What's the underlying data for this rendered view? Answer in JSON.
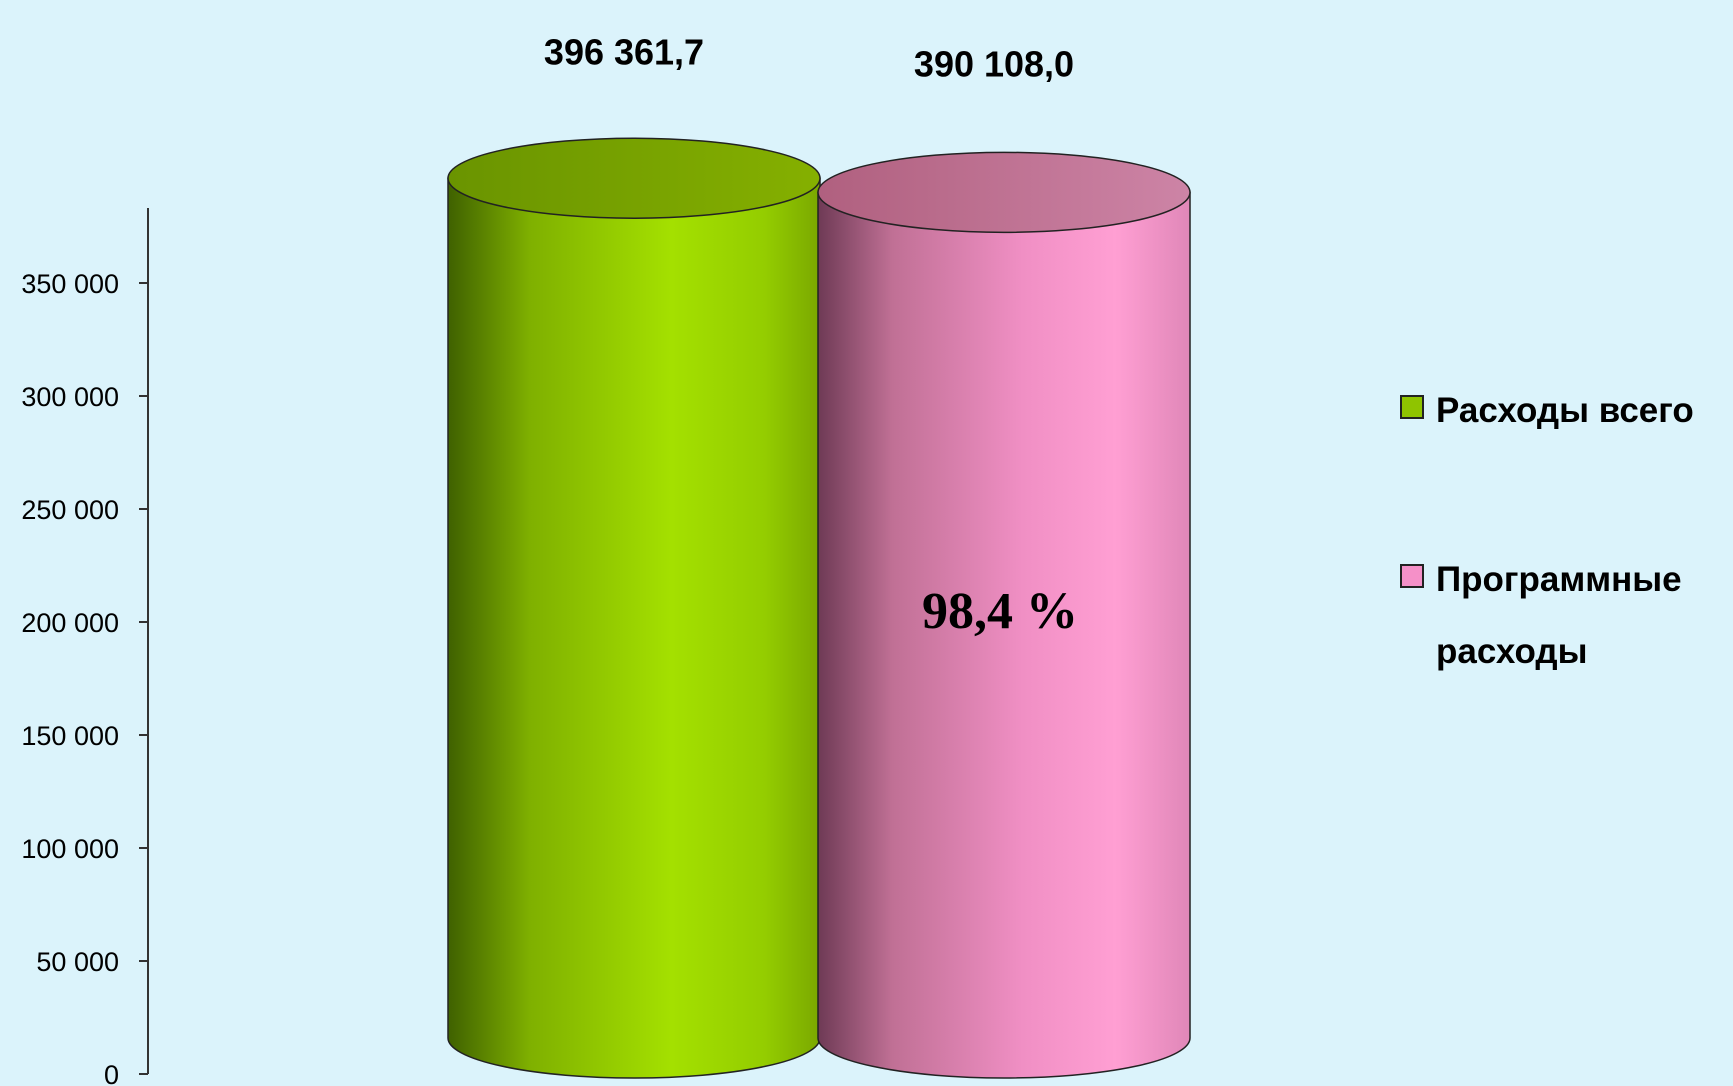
{
  "chart_data": {
    "type": "bar",
    "bar_shape": "cylinder",
    "categories": [
      "Расходы всего",
      "Программные расходы"
    ],
    "values": [
      396361.7,
      390108.0
    ],
    "data_labels": [
      "396 361,7",
      "390 108,0"
    ],
    "colors": [
      "#8fc400",
      "#f590c8"
    ],
    "y_ticks": [
      {
        "value": 0,
        "label": "0"
      },
      {
        "value": 50000,
        "label": "50 000"
      },
      {
        "value": 100000,
        "label": "100 000"
      },
      {
        "value": 150000,
        "label": "150 000"
      },
      {
        "value": 200000,
        "label": "200 000"
      },
      {
        "value": 250000,
        "label": "250 000"
      },
      {
        "value": 300000,
        "label": "300 000"
      },
      {
        "value": 350000,
        "label": "350 000"
      }
    ],
    "ylim": [
      0,
      380000
    ],
    "annotation": "98,4 %",
    "legend": {
      "placement": "right",
      "entries": [
        {
          "lines": [
            "Расходы всего"
          ],
          "color": "#8fc400"
        },
        {
          "lines": [
            "Программные",
            "расходы"
          ],
          "color": "#f590c8"
        }
      ]
    },
    "grid": false,
    "background": "#dbf3fb"
  }
}
